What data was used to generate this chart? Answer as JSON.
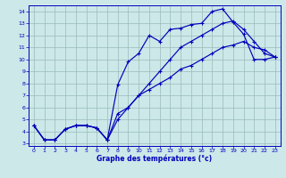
{
  "xlabel": "Graphe des températures (°c)",
  "xlim": [
    -0.5,
    23.5
  ],
  "ylim": [
    2.8,
    14.5
  ],
  "yticks": [
    3,
    4,
    5,
    6,
    7,
    8,
    9,
    10,
    11,
    12,
    13,
    14
  ],
  "xticks": [
    0,
    1,
    2,
    3,
    4,
    5,
    6,
    7,
    8,
    9,
    10,
    11,
    12,
    13,
    14,
    15,
    16,
    17,
    18,
    19,
    20,
    21,
    22,
    23
  ],
  "bg_color": "#cce8e8",
  "line_color": "#0000bb",
  "grid_color": "#99bbbb",
  "line1_y": [
    4.5,
    3.3,
    3.3,
    4.2,
    4.5,
    4.5,
    4.3,
    3.3,
    7.9,
    9.8,
    10.5,
    12.0,
    11.5,
    12.5,
    12.6,
    12.9,
    13.0,
    14.0,
    14.2,
    13.1,
    12.1,
    10.0,
    10.0,
    10.2
  ],
  "line2_y": [
    4.5,
    3.3,
    3.3,
    4.2,
    4.5,
    4.5,
    4.3,
    3.3,
    5.0,
    6.0,
    7.0,
    8.0,
    9.0,
    10.0,
    11.0,
    11.5,
    12.0,
    12.5,
    13.0,
    13.2,
    12.5,
    11.5,
    10.5,
    10.2
  ],
  "line3_y": [
    4.5,
    3.3,
    3.3,
    4.2,
    4.5,
    4.5,
    4.3,
    3.3,
    5.5,
    6.0,
    7.0,
    7.5,
    8.0,
    8.5,
    9.2,
    9.5,
    10.0,
    10.5,
    11.0,
    11.2,
    11.5,
    11.0,
    10.8,
    10.2
  ]
}
